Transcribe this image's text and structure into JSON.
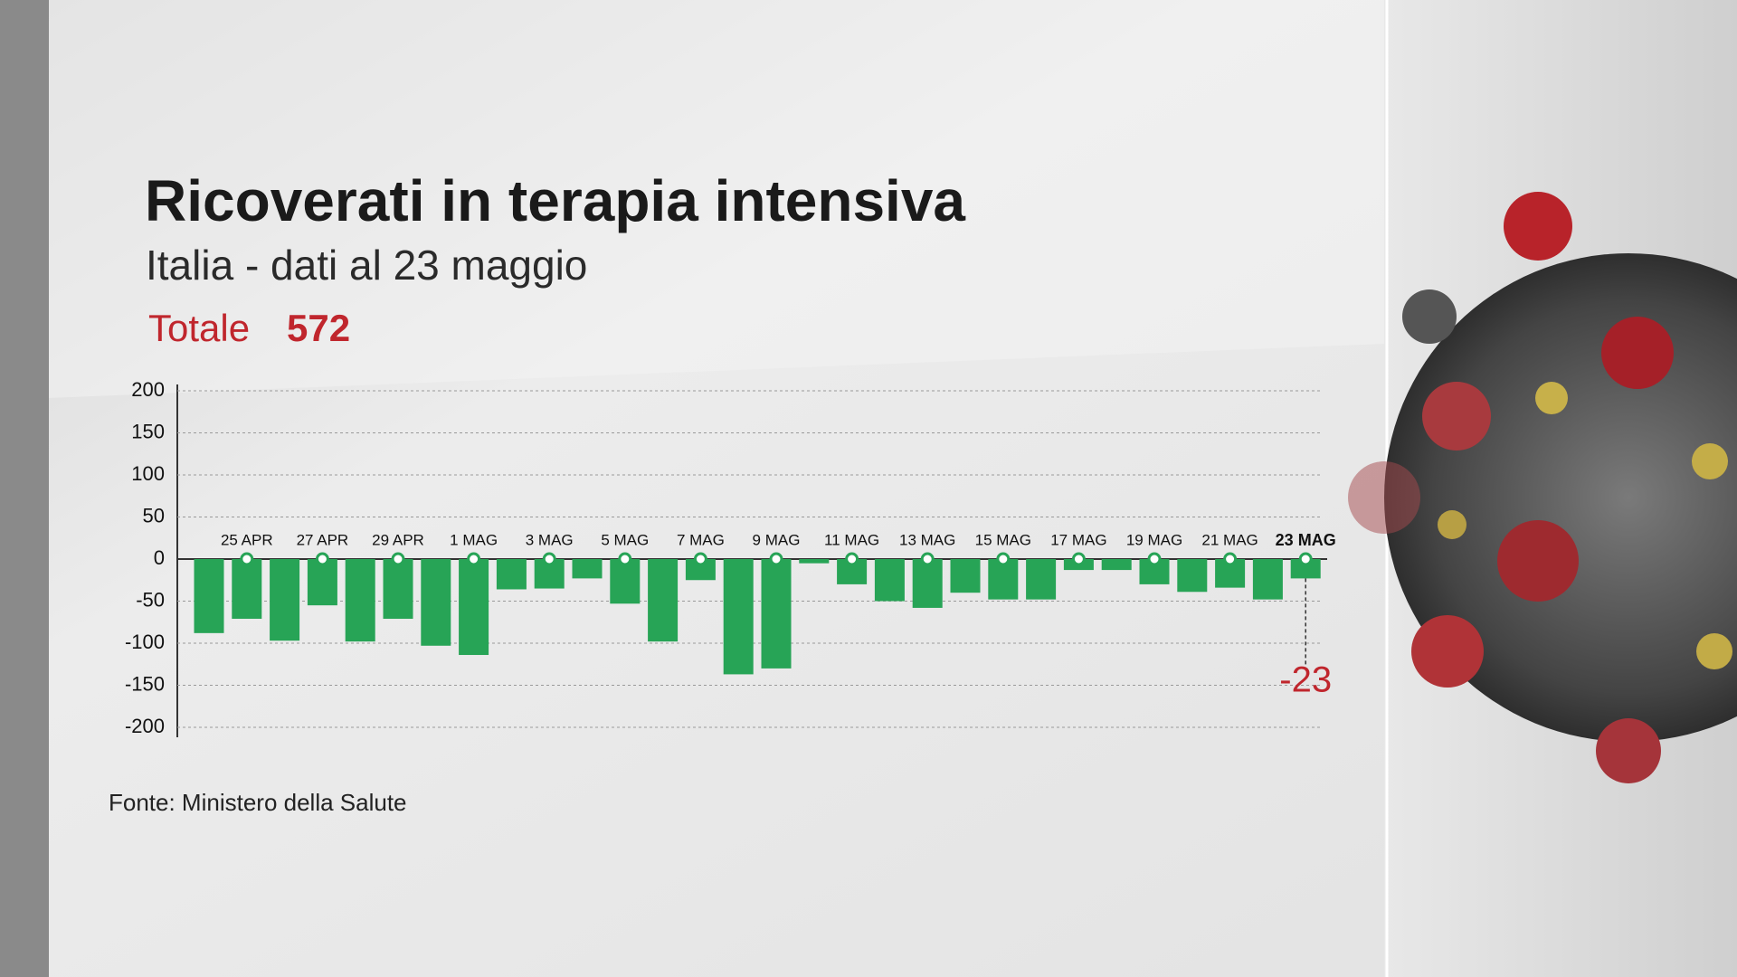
{
  "chart_data": {
    "type": "bar",
    "title": "Ricoverati in terapia intensiva",
    "subtitle": "Italia - dati al 23 maggio",
    "total_label": "Totale",
    "total_value": 572,
    "source": "Fonte: Ministero della Salute",
    "categories": [
      null,
      "25 APR",
      null,
      "27 APR",
      null,
      "29 APR",
      null,
      "1 MAG",
      null,
      "3 MAG",
      null,
      "5 MAG",
      null,
      "7 MAG",
      null,
      "9 MAG",
      null,
      "11 MAG",
      null,
      "13 MAG",
      null,
      "15 MAG",
      null,
      "17 MAG",
      null,
      "19 MAG",
      null,
      "21 MAG",
      null,
      "23 MAG"
    ],
    "values": [
      -88,
      -71,
      -97,
      -55,
      -98,
      -71,
      -103,
      -114,
      -36,
      -35,
      -23,
      -53,
      -98,
      -25,
      -137,
      -130,
      -5,
      -30,
      -50,
      -58,
      -40,
      -48,
      -48,
      -13,
      -13,
      -30,
      -39,
      -34,
      -48,
      -23
    ],
    "color": "#27a456",
    "ylim": [
      -200,
      200
    ],
    "yticks": [
      200,
      150,
      100,
      50,
      0,
      -50,
      -100,
      -150,
      -200
    ],
    "grid": true
  }
}
